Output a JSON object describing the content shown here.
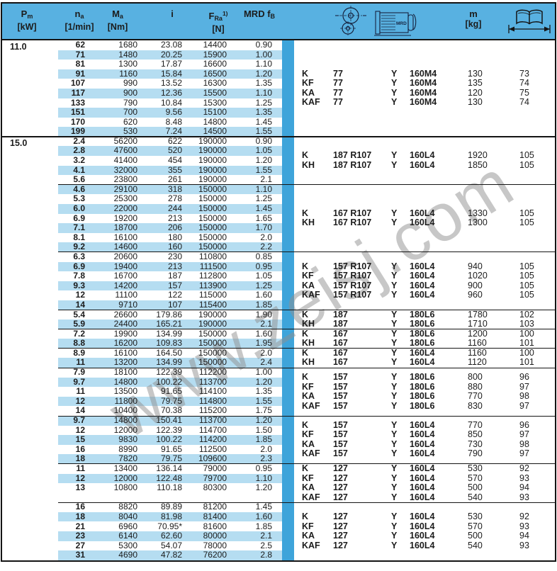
{
  "colors": {
    "header_blue": "#58b1e1",
    "stripe_blue": "#b5ddf1",
    "band_blue": "#3ea4da",
    "line_black": "#141414",
    "text": "#1c1c1c",
    "watermark_gray": "#909090"
  },
  "watermark": "www.zeisj.com",
  "header": {
    "columns": [
      {
        "parts": [
          [
            "P",
            ""
          ],
          [
            "m",
            "sub"
          ]
        ],
        "unit": "[kW]"
      },
      {
        "parts": [
          [
            "n",
            ""
          ],
          [
            "a",
            "sub"
          ]
        ],
        "unit": "[1/min]"
      },
      {
        "parts": [
          [
            "M",
            ""
          ],
          [
            "a",
            "sub"
          ]
        ],
        "unit": "[Nm]"
      },
      {
        "parts": [
          [
            "i",
            ""
          ]
        ],
        "unit": ""
      },
      {
        "parts": [
          [
            "F",
            ""
          ],
          [
            "Ra",
            "sub"
          ],
          [
            "1)",
            "sup"
          ]
        ],
        "unit": "[N]"
      },
      {
        "parts": [
          [
            "MRD f",
            ""
          ],
          [
            "B",
            "sub"
          ]
        ],
        "unit": ""
      }
    ],
    "mass": {
      "parts": [
        [
          "m",
          ""
        ]
      ],
      "unit": "[kg]"
    },
    "motor_icon_label": "MRD"
  },
  "blocks": [
    {
      "pm": "11.0",
      "groups": [
        {
          "rows": [
            {
              "v": [
                "62",
                "1680",
                "23.08",
                "14400",
                "0.90"
              ],
              "s": 0
            },
            {
              "v": [
                "71",
                "1480",
                "20.25",
                "15900",
                "1.00"
              ],
              "s": 1
            },
            {
              "v": [
                "81",
                "1300",
                "17.87",
                "16600",
                "1.10"
              ],
              "s": 0
            },
            {
              "v": [
                "91",
                "1160",
                "15.84",
                "16500",
                "1.20"
              ],
              "s": 1
            },
            {
              "v": [
                "107",
                "990",
                "13.52",
                "16300",
                "1.35"
              ],
              "s": 0
            },
            {
              "v": [
                "117",
                "900",
                "12.36",
                "15500",
                "1.10"
              ],
              "s": 1
            },
            {
              "v": [
                "133",
                "790",
                "10.84",
                "15300",
                "1.25"
              ],
              "s": 0
            },
            {
              "v": [
                "151",
                "700",
                "9.56",
                "15100",
                "1.35"
              ],
              "s": 1
            },
            {
              "v": [
                "170",
                "620",
                "8.48",
                "14800",
                "1.45"
              ],
              "s": 0
            },
            {
              "v": [
                "199",
                "530",
                "7.24",
                "14500",
                "1.55"
              ],
              "s": 1
            }
          ],
          "right": [
            [
              "K",
              "77",
              "Y",
              "160M4",
              "130",
              "73"
            ],
            [
              "KF",
              "77",
              "Y",
              "160M4",
              "135",
              "74"
            ],
            [
              "KA",
              "77",
              "Y",
              "160M4",
              "120",
              "75"
            ],
            [
              "KAF",
              "77",
              "Y",
              "160M4",
              "130",
              "74"
            ]
          ]
        }
      ]
    },
    {
      "pm": "15.0",
      "groups": [
        {
          "rows": [
            {
              "v": [
                "2.4",
                "56200",
                "622",
                "190000",
                "0.90"
              ],
              "s": 0
            },
            {
              "v": [
                "2.8",
                "47600",
                "520",
                "190000",
                "1.05"
              ],
              "s": 1
            },
            {
              "v": [
                "3.2",
                "41400",
                "454",
                "190000",
                "1.20"
              ],
              "s": 0
            },
            {
              "v": [
                "4.1",
                "32000",
                "355",
                "190000",
                "1.55"
              ],
              "s": 1
            },
            {
              "v": [
                "5.6",
                "23800",
                "261",
                "190000",
                "2.1"
              ],
              "s": 0
            }
          ],
          "right": [
            [
              "K",
              "187 R107",
              "Y",
              "160L4",
              "1920",
              "105"
            ],
            [
              "KH",
              "187 R107",
              "Y",
              "160L4",
              "1850",
              "105"
            ]
          ]
        },
        {
          "rows": [
            {
              "v": [
                "4.6",
                "29100",
                "318",
                "150000",
                "1.10"
              ],
              "s": 1
            },
            {
              "v": [
                "5.3",
                "25300",
                "278",
                "150000",
                "1.25"
              ],
              "s": 0
            },
            {
              "v": [
                "6.0",
                "22000",
                "244",
                "150000",
                "1.45"
              ],
              "s": 1
            },
            {
              "v": [
                "6.9",
                "19200",
                "213",
                "150000",
                "1.65"
              ],
              "s": 0
            },
            {
              "v": [
                "7.1",
                "18700",
                "206",
                "150000",
                "1.70"
              ],
              "s": 1
            },
            {
              "v": [
                "8.1",
                "16100",
                "180",
                "150000",
                "2.0"
              ],
              "s": 0
            },
            {
              "v": [
                "9.2",
                "14600",
                "160",
                "150000",
                "2.2"
              ],
              "s": 1
            }
          ],
          "right": [
            [
              "K",
              "167 R107",
              "Y",
              "160L4",
              "1330",
              "105"
            ],
            [
              "KH",
              "167 R107",
              "Y",
              "160L4",
              "1300",
              "105"
            ]
          ]
        },
        {
          "rows": [
            {
              "v": [
                "6.3",
                "20600",
                "230",
                "110800",
                "0.85"
              ],
              "s": 0
            },
            {
              "v": [
                "6.9",
                "19400",
                "213",
                "111500",
                "0.95"
              ],
              "s": 1
            },
            {
              "v": [
                "7.8",
                "16700",
                "187",
                "112800",
                "1.05"
              ],
              "s": 0
            },
            {
              "v": [
                "9.3",
                "14200",
                "157",
                "113900",
                "1.25"
              ],
              "s": 1
            },
            {
              "v": [
                "12",
                "11100",
                "122",
                "115000",
                "1.60"
              ],
              "s": 0
            },
            {
              "v": [
                "14",
                "9710",
                "107",
                "115400",
                "1.85"
              ],
              "s": 1
            }
          ],
          "right": [
            [
              "K",
              "157 R107",
              "Y",
              "160L4",
              "940",
              "105"
            ],
            [
              "KF",
              "157 R107",
              "Y",
              "160L4",
              "1020",
              "105"
            ],
            [
              "KA",
              "157 R107",
              "Y",
              "160L4",
              "900",
              "105"
            ],
            [
              "KAF",
              "157 R107",
              "Y",
              "160L4",
              "960",
              "105"
            ]
          ]
        },
        {
          "rows": [
            {
              "v": [
                "5.4",
                "26600",
                "179.86",
                "190000",
                "1.90"
              ],
              "s": 0
            },
            {
              "v": [
                "5.9",
                "24400",
                "165.21",
                "190000",
                "2.1"
              ],
              "s": 1
            }
          ],
          "right": [
            [
              "K",
              "187",
              "Y",
              "180L6",
              "1780",
              "102"
            ],
            [
              "KH",
              "187",
              "Y",
              "180L6",
              "1710",
              "103"
            ]
          ]
        },
        {
          "rows": [
            {
              "v": [
                "7.2",
                "19900",
                "134.99",
                "150000",
                "1.60"
              ],
              "s": 0
            },
            {
              "v": [
                "8.8",
                "16200",
                "109.83",
                "150000",
                "1.95"
              ],
              "s": 1
            }
          ],
          "right": [
            [
              "K",
              "167",
              "Y",
              "180L6",
              "1200",
              "100"
            ],
            [
              "KH",
              "167",
              "Y",
              "180L6",
              "1160",
              "101"
            ]
          ]
        },
        {
          "rows": [
            {
              "v": [
                "8.9",
                "16100",
                "164.50",
                "150000",
                "2.0"
              ],
              "s": 0
            },
            {
              "v": [
                "11",
                "13200",
                "134.99",
                "150000",
                "2.4"
              ],
              "s": 1
            }
          ],
          "right": [
            [
              "K",
              "167",
              "Y",
              "160L4",
              "1160",
              "100"
            ],
            [
              "KH",
              "167",
              "Y",
              "160L4",
              "1120",
              "101"
            ]
          ]
        },
        {
          "rows": [
            {
              "v": [
                "7.9",
                "18100",
                "122.39",
                "112200",
                "1.00"
              ],
              "s": 0
            },
            {
              "v": [
                "9.7",
                "14800",
                "100.22",
                "113700",
                "1.20"
              ],
              "s": 1
            },
            {
              "v": [
                "11",
                "13500",
                "91.65",
                "114100",
                "1.35"
              ],
              "s": 0
            },
            {
              "v": [
                "12",
                "11800",
                "79.75",
                "114800",
                "1.55"
              ],
              "s": 1
            },
            {
              "v": [
                "14",
                "10400",
                "70.38",
                "115200",
                "1.75"
              ],
              "s": 0
            }
          ],
          "right": [
            [
              "K",
              "157",
              "Y",
              "180L6",
              "800",
              "96"
            ],
            [
              "KF",
              "157",
              "Y",
              "180L6",
              "880",
              "97"
            ],
            [
              "KA",
              "157",
              "Y",
              "180L6",
              "770",
              "98"
            ],
            [
              "KAF",
              "157",
              "Y",
              "180L6",
              "830",
              "97"
            ]
          ]
        },
        {
          "rows": [
            {
              "v": [
                "9.7",
                "14800",
                "150.41",
                "113700",
                "1.20"
              ],
              "s": 1
            },
            {
              "v": [
                "12",
                "12000",
                "122.39",
                "114700",
                "1.50"
              ],
              "s": 0
            },
            {
              "v": [
                "15",
                "9830",
                "100.22",
                "114200",
                "1.85"
              ],
              "s": 1
            },
            {
              "v": [
                "16",
                "8990",
                "91.65",
                "112500",
                "2.0"
              ],
              "s": 0
            },
            {
              "v": [
                "18",
                "7820",
                "79.75",
                "109600",
                "2.3"
              ],
              "s": 1
            }
          ],
          "right": [
            [
              "K",
              "157",
              "Y",
              "160L4",
              "770",
              "96"
            ],
            [
              "KF",
              "157",
              "Y",
              "160L4",
              "850",
              "97"
            ],
            [
              "KA",
              "157",
              "Y",
              "160L4",
              "730",
              "98"
            ],
            [
              "KAF",
              "157",
              "Y",
              "160L4",
              "790",
              "97"
            ]
          ]
        },
        {
          "rows": [
            {
              "v": [
                "11",
                "13400",
                "136.14",
                "79000",
                "0.95"
              ],
              "s": 0
            },
            {
              "v": [
                "12",
                "12000",
                "122.48",
                "79700",
                "1.10"
              ],
              "s": 1
            },
            {
              "v": [
                "13",
                "10800",
                "110.18",
                "80300",
                "1.20"
              ],
              "s": 0
            },
            {
              "v": [
                "",
                "",
                "",
                "",
                ""
              ],
              "s": 0
            }
          ],
          "right": [
            [
              "K",
              "127",
              "Y",
              "160L4",
              "530",
              "92"
            ],
            [
              "KF",
              "127",
              "Y",
              "160L4",
              "570",
              "93"
            ],
            [
              "KA",
              "127",
              "Y",
              "160L4",
              "500",
              "94"
            ],
            [
              "KAF",
              "127",
              "Y",
              "160L4",
              "540",
              "93"
            ]
          ]
        },
        {
          "rows": [
            {
              "v": [
                "16",
                "8820",
                "89.89",
                "81200",
                "1.45"
              ],
              "s": 0
            },
            {
              "v": [
                "18",
                "8040",
                "81.98",
                "81400",
                "1.60"
              ],
              "s": 1
            },
            {
              "v": [
                "21",
                "6960",
                "70.95*",
                "81600",
                "1.85"
              ],
              "s": 0
            },
            {
              "v": [
                "23",
                "6140",
                "62.60",
                "80000",
                "2.1"
              ],
              "s": 1
            },
            {
              "v": [
                "27",
                "5300",
                "54.07",
                "78000",
                "2.5"
              ],
              "s": 0
            },
            {
              "v": [
                "31",
                "4690",
                "47.82",
                "76200",
                "2.8"
              ],
              "s": 1
            }
          ],
          "right": [
            [
              "K",
              "127",
              "Y",
              "160L4",
              "530",
              "92"
            ],
            [
              "KF",
              "127",
              "Y",
              "160L4",
              "570",
              "93"
            ],
            [
              "KA",
              "127",
              "Y",
              "160L4",
              "500",
              "94"
            ],
            [
              "KAF",
              "127",
              "Y",
              "160L4",
              "540",
              "93"
            ]
          ]
        }
      ]
    }
  ]
}
